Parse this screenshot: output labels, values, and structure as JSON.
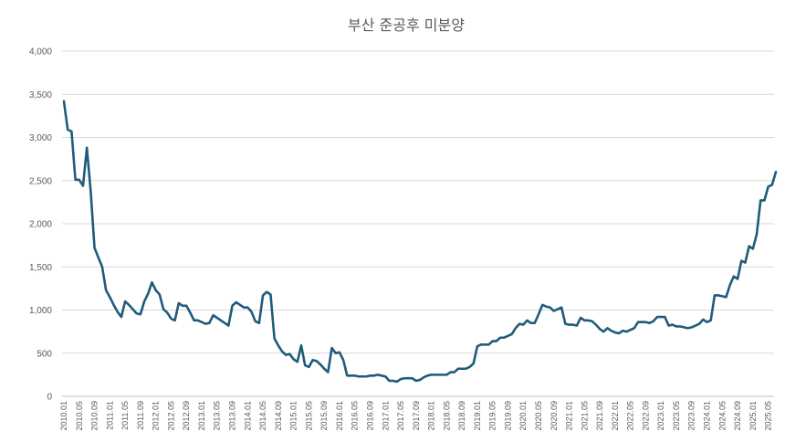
{
  "chart_data": {
    "type": "line",
    "title": "부산 준공후 미분양",
    "xlabel": "",
    "ylabel": "",
    "ylim": [
      0,
      4000
    ],
    "yticks": [
      0,
      500,
      1000,
      1500,
      2000,
      2500,
      3000,
      3500,
      4000
    ],
    "ytick_labels": [
      "0",
      "500",
      "1,000",
      "1,500",
      "2,000",
      "2,500",
      "3,000",
      "3,500",
      "4,000"
    ],
    "xtick_labels": [
      "2010.01",
      "2010.05",
      "2010.09",
      "2011.01",
      "2011.05",
      "2011.09",
      "2012.01",
      "2012.05",
      "2012.09",
      "2013.01",
      "2013.05",
      "2013.09",
      "2014.01",
      "2014.05",
      "2014.09",
      "2015.01",
      "2015.05",
      "2015.09",
      "2016.01",
      "2016.05",
      "2016.09",
      "2017.01",
      "2017.05",
      "2017.09",
      "2018.01",
      "2018.05",
      "2018.09",
      "2019.01",
      "2019.05",
      "2019.09",
      "2020.01",
      "2020.05",
      "2020.09",
      "2021.01",
      "2021.05",
      "2021.09",
      "2022.01",
      "2022.05",
      "2022.09",
      "2023.01",
      "2023.05",
      "2023.09",
      "2024.01",
      "2024.05",
      "2024.09",
      "2025.01",
      "2025.05"
    ],
    "grid": true,
    "legend": "none",
    "color": "#1f5c7a",
    "series": [
      {
        "x_start": "2010.01",
        "frequency": "monthly",
        "values": [
          3420,
          3090,
          3070,
          2510,
          2510,
          2440,
          2880,
          2380,
          1720,
          1610,
          1500,
          1230,
          1150,
          1060,
          980,
          920,
          1100,
          1060,
          1010,
          960,
          950,
          1100,
          1190,
          1320,
          1230,
          1180,
          1010,
          970,
          900,
          880,
          1080,
          1050,
          1050,
          970,
          880,
          880,
          860,
          840,
          850,
          940,
          910,
          880,
          850,
          820,
          1050,
          1090,
          1060,
          1030,
          1030,
          980,
          870,
          850,
          1170,
          1210,
          1180,
          670,
          590,
          520,
          480,
          490,
          430,
          400,
          590,
          360,
          340,
          420,
          410,
          370,
          320,
          280,
          560,
          500,
          510,
          420,
          240,
          240,
          240,
          230,
          230,
          230,
          240,
          240,
          250,
          240,
          230,
          180,
          180,
          170,
          200,
          210,
          210,
          210,
          180,
          190,
          220,
          240,
          250,
          250,
          250,
          250,
          250,
          280,
          280,
          320,
          320,
          320,
          340,
          380,
          580,
          600,
          600,
          600,
          640,
          640,
          680,
          680,
          700,
          720,
          790,
          840,
          830,
          880,
          850,
          850,
          950,
          1060,
          1040,
          1030,
          990,
          1010,
          1030,
          840,
          830,
          830,
          820,
          910,
          880,
          880,
          870,
          830,
          780,
          750,
          790,
          760,
          740,
          730,
          760,
          750,
          770,
          790,
          860,
          860,
          860,
          850,
          870,
          920,
          920,
          920,
          820,
          830,
          810,
          810,
          800,
          790,
          800,
          820,
          840,
          890,
          860,
          880,
          1170,
          1170,
          1160,
          1150,
          1290,
          1390,
          1360,
          1570,
          1550,
          1740,
          1710,
          1880,
          2270,
          2270,
          2430,
          2450,
          2600
        ]
      }
    ]
  }
}
